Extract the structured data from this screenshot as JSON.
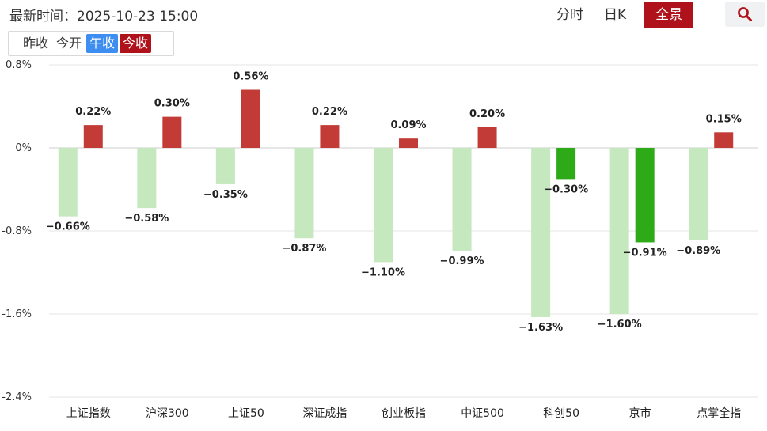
{
  "header": {
    "update_time": "最新时间：2025-10-23 15:00",
    "tabs": [
      {
        "label": "分时",
        "active": false
      },
      {
        "label": "日K",
        "active": false
      },
      {
        "label": "全景",
        "active": true
      }
    ],
    "search_icon": "search-icon"
  },
  "compare": {
    "tabs": [
      {
        "label": "昨收",
        "style": "plain"
      },
      {
        "label": "今开",
        "style": "plain"
      },
      {
        "label": "午收",
        "style": "blue"
      },
      {
        "label": "今收",
        "style": "red"
      }
    ]
  },
  "colors": {
    "noon_bar": "#c5e8bf",
    "close_up": "#c23b36",
    "close_down": "#2ea918",
    "grid": "#e5e5e5",
    "zero_line": "#cccccc"
  },
  "chart_data": {
    "type": "bar",
    "ylim": [
      -2.4,
      0.8
    ],
    "yticks": [
      "0.8%",
      "0%",
      "-0.8%",
      "-1.6%",
      "-2.4%"
    ],
    "ytick_values": [
      0.8,
      0,
      -0.8,
      -1.6,
      -2.4
    ],
    "grid": true,
    "categories": [
      "上证指数",
      "沪深300",
      "上证50",
      "深证成指",
      "创业板指",
      "中证500",
      "科创50",
      "京市",
      "点掌全指"
    ],
    "series": [
      {
        "name": "午收",
        "values": [
          -0.66,
          -0.58,
          -0.35,
          -0.87,
          -1.1,
          -0.99,
          -1.63,
          -1.6,
          -0.89
        ]
      },
      {
        "name": "今收",
        "values": [
          0.22,
          0.3,
          0.56,
          0.22,
          0.09,
          0.2,
          -0.3,
          -0.91,
          0.15
        ]
      }
    ],
    "labels": [
      [
        "−0.66%",
        "−0.58%",
        "−0.35%",
        "−0.87%",
        "−1.10%",
        "−0.99%",
        "−1.63%",
        "−1.60%",
        "−0.89%"
      ],
      [
        "0.22%",
        "0.30%",
        "0.56%",
        "0.22%",
        "0.09%",
        "0.20%",
        "−0.30%",
        "−0.91%",
        "0.15%"
      ]
    ]
  }
}
